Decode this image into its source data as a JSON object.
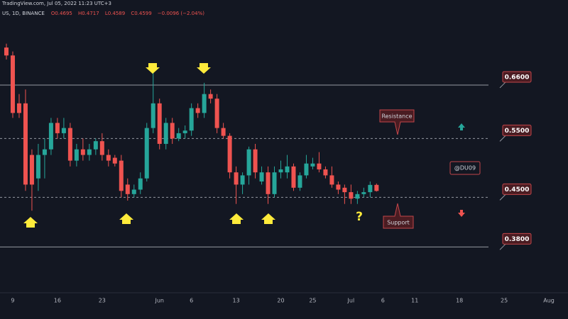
{
  "chart_data": {
    "type": "candlestick",
    "header": "TradingView.com, Jul 05, 2022 11:23 UTC+3",
    "symbol": "US, 1D, BINANCE",
    "ohlc": [
      "O0.4695",
      "H0.4717",
      "L0.4589",
      "C0.4599",
      "−0.0096 (−2.04%)"
    ],
    "x": [
      "2022-05-08",
      "2022-05-09",
      "2022-05-10",
      "2022-05-11",
      "2022-05-12",
      "2022-05-13",
      "2022-05-14",
      "2022-05-15",
      "2022-05-16",
      "2022-05-17",
      "2022-05-18",
      "2022-05-19",
      "2022-05-20",
      "2022-05-21",
      "2022-05-22",
      "2022-05-23",
      "2022-05-24",
      "2022-05-25",
      "2022-05-26",
      "2022-05-27",
      "2022-05-28",
      "2022-05-29",
      "2022-05-30",
      "2022-05-31",
      "2022-06-01",
      "2022-06-02",
      "2022-06-03",
      "2022-06-04",
      "2022-06-05",
      "2022-06-06",
      "2022-06-07",
      "2022-06-08",
      "2022-06-09",
      "2022-06-10",
      "2022-06-11",
      "2022-06-12",
      "2022-06-13",
      "2022-06-14",
      "2022-06-15",
      "2022-06-16",
      "2022-06-17",
      "2022-06-18",
      "2022-06-19",
      "2022-06-20",
      "2022-06-21",
      "2022-06-22",
      "2022-06-23",
      "2022-06-24",
      "2022-06-25",
      "2022-06-26",
      "2022-06-27",
      "2022-06-28",
      "2022-06-29",
      "2022-06-30",
      "2022-07-01",
      "2022-07-02",
      "2022-07-03",
      "2022-07-04",
      "2022-07-05"
    ],
    "open": [
      0.75,
      0.73,
      0.62,
      0.62,
      0.52,
      0.48,
      0.52,
      0.53,
      0.58,
      0.56,
      0.57,
      0.51,
      0.53,
      0.52,
      0.53,
      0.545,
      0.52,
      0.515,
      0.51,
      0.47,
      0.455,
      0.462,
      0.48,
      0.57,
      0.62,
      0.54,
      0.58,
      0.55,
      0.56,
      0.565,
      0.61,
      0.6,
      0.64,
      0.63,
      0.57,
      0.555,
      0.49,
      0.47,
      0.485,
      0.53,
      0.475,
      0.49,
      0.455,
      0.49,
      0.49,
      0.5,
      0.465,
      0.485,
      0.5,
      0.505,
      0.495,
      0.485,
      0.47,
      0.465,
      0.458,
      0.448,
      0.455,
      0.458,
      0.4695
    ],
    "high": [
      0.76,
      0.74,
      0.64,
      0.65,
      0.53,
      0.54,
      0.55,
      0.59,
      0.59,
      0.59,
      0.58,
      0.54,
      0.55,
      0.54,
      0.55,
      0.56,
      0.53,
      0.52,
      0.52,
      0.48,
      0.47,
      0.49,
      0.58,
      0.69,
      0.63,
      0.59,
      0.59,
      0.57,
      0.575,
      0.62,
      0.62,
      0.665,
      0.65,
      0.64,
      0.58,
      0.56,
      0.5,
      0.49,
      0.535,
      0.54,
      0.5,
      0.5,
      0.5,
      0.51,
      0.52,
      0.505,
      0.49,
      0.52,
      0.515,
      0.525,
      0.5,
      0.5,
      0.475,
      0.47,
      0.47,
      0.46,
      0.465,
      0.475,
      0.4717
    ],
    "low": [
      0.72,
      0.59,
      0.59,
      0.46,
      0.43,
      0.46,
      0.48,
      0.52,
      0.55,
      0.55,
      0.5,
      0.5,
      0.51,
      0.51,
      0.52,
      0.51,
      0.5,
      0.5,
      0.45,
      0.445,
      0.45,
      0.455,
      0.475,
      0.56,
      0.53,
      0.53,
      0.54,
      0.545,
      0.55,
      0.555,
      0.59,
      0.59,
      0.62,
      0.56,
      0.55,
      0.48,
      0.44,
      0.455,
      0.47,
      0.48,
      0.47,
      0.44,
      0.45,
      0.48,
      0.48,
      0.46,
      0.46,
      0.48,
      0.495,
      0.49,
      0.48,
      0.465,
      0.455,
      0.44,
      0.44,
      0.44,
      0.45,
      0.45,
      0.4589
    ],
    "close": [
      0.73,
      0.6,
      0.6,
      0.47,
      0.47,
      0.52,
      0.53,
      0.58,
      0.56,
      0.57,
      0.51,
      0.53,
      0.52,
      0.53,
      0.545,
      0.52,
      0.51,
      0.505,
      0.46,
      0.455,
      0.462,
      0.48,
      0.57,
      0.62,
      0.54,
      0.58,
      0.55,
      0.56,
      0.565,
      0.61,
      0.6,
      0.64,
      0.63,
      0.57,
      0.555,
      0.49,
      0.47,
      0.485,
      0.53,
      0.49,
      0.49,
      0.455,
      0.49,
      0.495,
      0.5,
      0.465,
      0.485,
      0.505,
      0.505,
      0.495,
      0.485,
      0.47,
      0.462,
      0.458,
      0.448,
      0.455,
      0.458,
      0.4695,
      0.4599
    ],
    "up_color": "#26a69a",
    "down_color": "#ef5350",
    "log_scale": true,
    "ylim": [
      0.325,
      0.882
    ],
    "xlim": [
      "2022-05-07",
      "2022-08-04"
    ],
    "xticks": [
      {
        "value": "2022-05-09",
        "label": "9"
      },
      {
        "value": "2022-05-16",
        "label": "16"
      },
      {
        "value": "2022-05-23",
        "label": "23"
      },
      {
        "value": "2022-06-01",
        "label": "Jun"
      },
      {
        "value": "2022-06-06",
        "label": "6"
      },
      {
        "value": "2022-06-13",
        "label": "13"
      },
      {
        "value": "2022-06-20",
        "label": "20"
      },
      {
        "value": "2022-06-25",
        "label": "25"
      },
      {
        "value": "2022-07-01",
        "label": "Jul"
      },
      {
        "value": "2022-07-06",
        "label": "6"
      },
      {
        "value": "2022-07-11",
        "label": "11"
      },
      {
        "value": "2022-07-18",
        "label": "18"
      },
      {
        "value": "2022-07-25",
        "label": "25"
      },
      {
        "value": "2022-08-01",
        "label": "Aug"
      }
    ],
    "levels": [
      {
        "value": 0.66,
        "label": "0.6600",
        "style": "solid"
      },
      {
        "value": 0.55,
        "label": "0.5500",
        "style": "dashed"
      },
      {
        "value": 0.45,
        "label": "0.4500",
        "style": "dashed"
      },
      {
        "value": 0.38,
        "label": "0.3800",
        "style": "solid"
      }
    ],
    "annotations": {
      "resistance": "Resistance",
      "support": "Support",
      "author": "@DU09",
      "question": "?"
    }
  }
}
